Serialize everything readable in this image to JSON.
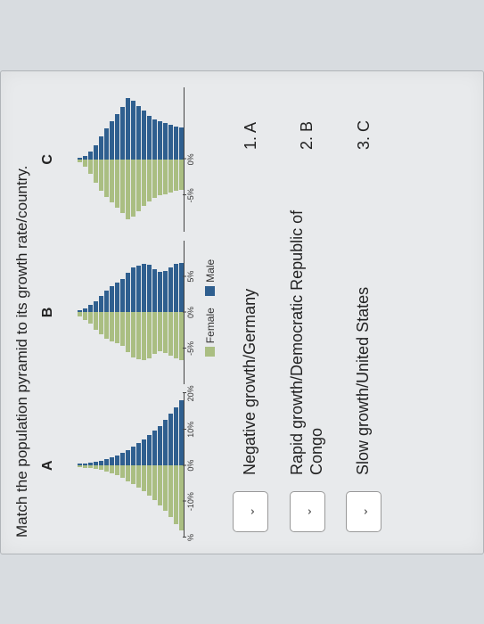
{
  "title": "Match the population pyramid to its growth rate/country.",
  "colors": {
    "female": "#aabe82",
    "male": "#2f5f8f",
    "axis": "#444444",
    "background": "#e8eaec"
  },
  "legend": {
    "female": "Female",
    "male": "Male"
  },
  "charts": [
    {
      "label": "A",
      "max": 20,
      "ticks": [
        {
          "pos": 0,
          "label": "%"
        },
        {
          "pos": 25,
          "label": "-10%"
        },
        {
          "pos": 50,
          "label": "0%"
        },
        {
          "pos": 75,
          "label": "10%"
        },
        {
          "pos": 100,
          "label": "20%"
        }
      ],
      "rows": [
        {
          "f": 0.5,
          "m": 0.5
        },
        {
          "f": 0.6,
          "m": 0.6
        },
        {
          "f": 0.8,
          "m": 0.8
        },
        {
          "f": 1.0,
          "m": 1.0
        },
        {
          "f": 1.3,
          "m": 1.3
        },
        {
          "f": 1.7,
          "m": 1.7
        },
        {
          "f": 2.2,
          "m": 2.2
        },
        {
          "f": 2.8,
          "m": 2.8
        },
        {
          "f": 3.5,
          "m": 3.5
        },
        {
          "f": 4.3,
          "m": 4.3
        },
        {
          "f": 5.2,
          "m": 5.2
        },
        {
          "f": 6.2,
          "m": 6.2
        },
        {
          "f": 7.2,
          "m": 7.2
        },
        {
          "f": 8.4,
          "m": 8.4
        },
        {
          "f": 9.6,
          "m": 9.6
        },
        {
          "f": 11.0,
          "m": 11.0
        },
        {
          "f": 12.6,
          "m": 12.6
        },
        {
          "f": 14.4,
          "m": 14.4
        },
        {
          "f": 16.2,
          "m": 16.2
        },
        {
          "f": 18.0,
          "m": 18.0
        }
      ]
    },
    {
      "label": "B",
      "max": 10,
      "ticks": [
        {
          "pos": 25,
          "label": "-5%"
        },
        {
          "pos": 50,
          "label": "0%"
        },
        {
          "pos": 75,
          "label": "5%"
        }
      ],
      "rows": [
        {
          "f": 0.6,
          "m": 0.3
        },
        {
          "f": 1.0,
          "m": 0.6
        },
        {
          "f": 1.6,
          "m": 1.0
        },
        {
          "f": 2.4,
          "m": 1.6
        },
        {
          "f": 3.0,
          "m": 2.3
        },
        {
          "f": 3.6,
          "m": 3.0
        },
        {
          "f": 4.0,
          "m": 3.6
        },
        {
          "f": 4.3,
          "m": 4.1
        },
        {
          "f": 4.6,
          "m": 4.6
        },
        {
          "f": 5.5,
          "m": 5.5
        },
        {
          "f": 6.2,
          "m": 6.2
        },
        {
          "f": 6.5,
          "m": 6.5
        },
        {
          "f": 6.6,
          "m": 6.7
        },
        {
          "f": 6.4,
          "m": 6.6
        },
        {
          "f": 5.8,
          "m": 6.0
        },
        {
          "f": 5.4,
          "m": 5.6
        },
        {
          "f": 5.6,
          "m": 5.8
        },
        {
          "f": 6.0,
          "m": 6.3
        },
        {
          "f": 6.4,
          "m": 6.7
        },
        {
          "f": 6.6,
          "m": 6.9
        }
      ]
    },
    {
      "label": "C",
      "max": 10,
      "ticks": [
        {
          "pos": 25,
          "label": "-5%"
        },
        {
          "pos": 50,
          "label": "0%"
        }
      ],
      "rows": [
        {
          "f": 0.4,
          "m": 0.2
        },
        {
          "f": 1.0,
          "m": 0.5
        },
        {
          "f": 2.0,
          "m": 1.1
        },
        {
          "f": 3.2,
          "m": 2.0
        },
        {
          "f": 4.3,
          "m": 3.2
        },
        {
          "f": 5.2,
          "m": 4.3
        },
        {
          "f": 6.0,
          "m": 5.3
        },
        {
          "f": 6.7,
          "m": 6.3
        },
        {
          "f": 7.4,
          "m": 7.3
        },
        {
          "f": 8.3,
          "m": 8.5
        },
        {
          "f": 8.0,
          "m": 8.2
        },
        {
          "f": 7.2,
          "m": 7.4
        },
        {
          "f": 6.5,
          "m": 6.8
        },
        {
          "f": 5.8,
          "m": 6.0
        },
        {
          "f": 5.4,
          "m": 5.6
        },
        {
          "f": 5.0,
          "m": 5.3
        },
        {
          "f": 4.8,
          "m": 5.0
        },
        {
          "f": 4.6,
          "m": 4.8
        },
        {
          "f": 4.4,
          "m": 4.6
        },
        {
          "f": 4.2,
          "m": 4.4
        }
      ]
    }
  ],
  "matches": [
    {
      "desc": "Negative growth/Germany",
      "opt": "1.  A"
    },
    {
      "desc": "Rapid growth/Democratic Republic of Congo",
      "opt": "2.  B"
    },
    {
      "desc": "Slow growth/United States",
      "opt": "3.  C"
    }
  ],
  "dropdown_glyph": "⌄"
}
